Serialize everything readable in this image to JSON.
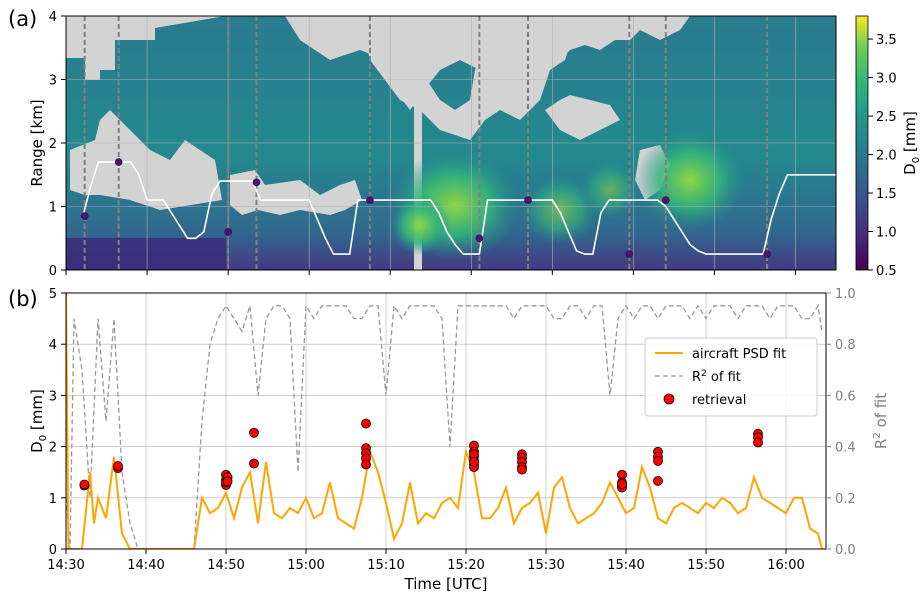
{
  "chart_data": [
    {
      "type": "heatmap",
      "panel_label": "(a)",
      "ylabel": "Range [km]",
      "xlim": [
        0,
        95
      ],
      "ylim": [
        0,
        4
      ],
      "y_ticks": [
        "0",
        "1",
        "2",
        "3",
        "4"
      ],
      "colorbar": {
        "label": "D0 [mm]",
        "range": [
          0.5,
          3.8
        ],
        "ticks": [
          "0.5",
          "1.0",
          "1.5",
          "2.0",
          "2.5",
          "3.0",
          "3.5"
        ],
        "colormap": "viridis"
      },
      "no_data_color": "#d3d3d3",
      "overlay_flight_track": {
        "color": "#ffffff",
        "x_minutes": [
          2,
          3,
          4,
          5,
          6,
          7,
          8,
          9,
          10,
          11,
          12,
          13,
          14,
          15,
          16,
          17,
          18,
          19,
          20,
          21,
          22,
          23,
          24,
          25,
          26,
          27,
          28,
          29,
          30,
          31,
          32,
          33,
          34,
          35,
          36,
          37,
          38,
          39,
          40,
          41,
          42,
          43,
          44,
          45,
          46,
          47,
          48,
          49,
          50,
          51,
          52,
          53,
          54,
          55,
          56,
          57,
          58,
          59,
          60,
          61,
          62,
          63,
          64,
          65,
          66,
          67,
          68,
          69,
          70,
          71,
          72,
          73,
          74,
          75,
          76,
          77,
          78,
          79,
          80,
          81,
          82,
          83,
          84,
          85,
          86,
          87,
          88,
          89,
          90,
          91,
          92,
          93,
          94,
          95
        ],
        "y_km": [
          0.8,
          1.3,
          1.7,
          1.7,
          1.7,
          1.7,
          1.7,
          1.5,
          1.1,
          1.1,
          1.1,
          0.9,
          0.7,
          0.5,
          0.5,
          0.6,
          1.2,
          1.4,
          1.4,
          1.4,
          1.4,
          1.4,
          1.1,
          1.1,
          1.1,
          1.1,
          1.1,
          1.1,
          1.1,
          0.8,
          0.5,
          0.25,
          0.25,
          0.25,
          1.1,
          1.1,
          1.1,
          1.1,
          1.1,
          1.1,
          1.1,
          1.1,
          1.1,
          1.1,
          0.9,
          0.6,
          0.4,
          0.25,
          0.25,
          0.25,
          1.1,
          1.1,
          1.1,
          1.1,
          1.1,
          1.1,
          1.1,
          1.1,
          1.1,
          0.9,
          0.6,
          0.3,
          0.25,
          0.25,
          0.9,
          1.1,
          1.1,
          1.1,
          1.1,
          1.1,
          1.1,
          1.1,
          1.0,
          0.8,
          0.6,
          0.4,
          0.3,
          0.25,
          0.25,
          0.25,
          0.25,
          0.25,
          0.25,
          0.25,
          0.25,
          0.8,
          1.2,
          1.5,
          1.5,
          1.5,
          1.5,
          1.5,
          1.5,
          1.5
        ]
      },
      "retrieval_markers_km": [
        {
          "x": 2.3,
          "y": 0.85
        },
        {
          "x": 6.5,
          "y": 1.7
        },
        {
          "x": 20.0,
          "y": 0.6
        },
        {
          "x": 23.5,
          "y": 1.38
        },
        {
          "x": 37.5,
          "y": 1.1
        },
        {
          "x": 51.0,
          "y": 0.5
        },
        {
          "x": 57.0,
          "y": 1.1
        },
        {
          "x": 69.5,
          "y": 0.25
        },
        {
          "x": 74.0,
          "y": 1.1
        },
        {
          "x": 86.5,
          "y": 0.25
        }
      ],
      "dashed_verticals_minutes": [
        2.3,
        6.5,
        20.0,
        23.5,
        37.5,
        51.0,
        57.0,
        69.5,
        74.0,
        86.5
      ]
    },
    {
      "type": "line",
      "panel_label": "(b)",
      "xlabel": "Time [UTC]",
      "ylabel": "D0 [mm]",
      "ylabel_right": "R2 of fit",
      "x_ticks": [
        "14:30",
        "14:40",
        "14:50",
        "15:00",
        "15:10",
        "15:20",
        "15:30",
        "15:40",
        "15:50",
        "16:00"
      ],
      "x_tick_minutes": [
        0,
        10,
        20,
        30,
        40,
        50,
        60,
        70,
        80,
        90
      ],
      "xlim": [
        0,
        95
      ],
      "ylim": [
        0,
        5
      ],
      "y_ticks": [
        "0",
        "1",
        "2",
        "3",
        "4",
        "5"
      ],
      "ylim_right": [
        0.0,
        1.0
      ],
      "y_ticks_right": [
        "0.0",
        "0.2",
        "0.4",
        "0.6",
        "0.8",
        "1.0"
      ],
      "grid": true,
      "legend_position": "right",
      "series": [
        {
          "name": "aircraft PSD fit",
          "style": "solid",
          "color": "#ffa500",
          "x": [
            0,
            0.3,
            0.5,
            1,
            2,
            3,
            3.5,
            4,
            5,
            6,
            7,
            8,
            9,
            10,
            11,
            12,
            13,
            14,
            15,
            16,
            17,
            18,
            19,
            20,
            21,
            22,
            23,
            24,
            25,
            26,
            27,
            28,
            29,
            30,
            31,
            32,
            33,
            34,
            35,
            36,
            37,
            38,
            39,
            40,
            41,
            42,
            43,
            44,
            45,
            46,
            47,
            48,
            49,
            50,
            51,
            52,
            53,
            54,
            55,
            56,
            57,
            58,
            59,
            60,
            61,
            62,
            63,
            64,
            65,
            66,
            67,
            68,
            69,
            70,
            71,
            72,
            73,
            74,
            75,
            76,
            77,
            78,
            79,
            80,
            81,
            82,
            83,
            84,
            85,
            86,
            87,
            88,
            89,
            90,
            91,
            92,
            93,
            94,
            94.5
          ],
          "values": [
            5.0,
            0.0,
            0.0,
            0.0,
            0.0,
            1.5,
            0.5,
            1.0,
            0.6,
            1.8,
            0.3,
            0.0,
            0.0,
            0.0,
            0.0,
            0.0,
            0.0,
            0.0,
            0.0,
            0.0,
            1.0,
            0.7,
            0.8,
            1.1,
            0.6,
            1.2,
            1.5,
            0.5,
            1.7,
            0.7,
            0.6,
            0.8,
            0.7,
            1.0,
            0.6,
            0.7,
            1.3,
            0.6,
            0.5,
            0.4,
            1.0,
            1.9,
            1.5,
            0.9,
            0.2,
            0.5,
            1.3,
            0.5,
            0.7,
            0.6,
            0.9,
            1.0,
            0.8,
            1.9,
            1.5,
            0.6,
            0.6,
            0.8,
            1.2,
            0.5,
            0.8,
            0.9,
            1.1,
            0.3,
            1.2,
            1.4,
            0.8,
            0.5,
            0.6,
            0.7,
            0.9,
            1.3,
            1.0,
            0.7,
            0.8,
            1.6,
            1.2,
            0.6,
            0.5,
            0.8,
            0.9,
            0.8,
            0.7,
            0.9,
            0.8,
            1.0,
            0.9,
            0.7,
            0.8,
            1.4,
            1.0,
            0.9,
            0.8,
            0.7,
            1.0,
            1.0,
            0.4,
            0.3,
            0.0
          ]
        },
        {
          "name": "R2 of fit",
          "style": "dashed",
          "color": "#999999",
          "axis": "right",
          "x": [
            0,
            0.5,
            1,
            2,
            3,
            4,
            5,
            6,
            7,
            8,
            9,
            10,
            11,
            12,
            13,
            14,
            15,
            16,
            17,
            18,
            19,
            20,
            21,
            22,
            23,
            24,
            25,
            26,
            27,
            28,
            29,
            30,
            31,
            32,
            33,
            34,
            35,
            36,
            37,
            38,
            39,
            40,
            41,
            42,
            43,
            44,
            45,
            46,
            47,
            48,
            49,
            50,
            51,
            52,
            53,
            54,
            55,
            56,
            57,
            58,
            59,
            60,
            61,
            62,
            63,
            64,
            65,
            66,
            67,
            68,
            69,
            70,
            71,
            72,
            73,
            74,
            75,
            76,
            77,
            78,
            79,
            80,
            81,
            82,
            83,
            84,
            85,
            86,
            87,
            88,
            89,
            90,
            91,
            92,
            93,
            94,
            94.5
          ],
          "values": [
            0.2,
            0.0,
            0.9,
            0.7,
            0.2,
            0.9,
            0.5,
            0.9,
            0.3,
            0.1,
            0.0,
            0.0,
            0.0,
            0.0,
            0.0,
            0.0,
            0.0,
            0.0,
            0.5,
            0.8,
            0.9,
            0.95,
            0.9,
            0.85,
            0.95,
            0.6,
            0.9,
            0.95,
            0.95,
            0.9,
            0.3,
            0.95,
            0.9,
            0.95,
            0.95,
            0.95,
            0.95,
            0.9,
            0.9,
            0.95,
            0.95,
            0.6,
            0.95,
            0.9,
            0.95,
            0.95,
            0.95,
            0.95,
            0.9,
            0.4,
            0.95,
            0.95,
            0.95,
            0.95,
            0.95,
            0.95,
            0.95,
            0.9,
            0.95,
            0.95,
            0.95,
            0.95,
            0.9,
            0.9,
            0.95,
            0.95,
            0.9,
            0.95,
            0.95,
            0.6,
            0.9,
            0.95,
            0.9,
            0.95,
            0.95,
            0.9,
            0.95,
            0.95,
            0.95,
            0.9,
            0.95,
            0.9,
            0.95,
            0.95,
            0.95,
            0.9,
            0.95,
            0.95,
            0.95,
            0.9,
            0.95,
            0.95,
            0.95,
            0.9,
            0.9,
            0.95,
            0.85
          ]
        },
        {
          "name": "retrieval",
          "style": "markers",
          "color": "#ff0000",
          "x": [
            2.3,
            2.3,
            6.5,
            6.5,
            20.0,
            20.0,
            20.0,
            20.0,
            20.2,
            20.2,
            23.5,
            23.5,
            37.5,
            37.5,
            37.5,
            37.5,
            37.5,
            51.0,
            51.0,
            51.0,
            51.0,
            51.0,
            51.0,
            51.0,
            51.0,
            57.0,
            57.0,
            57.0,
            57.0,
            57.0,
            69.5,
            69.5,
            69.5,
            69.5,
            69.5,
            74.0,
            74.0,
            74.0,
            74.0,
            86.5,
            86.5,
            86.5
          ],
          "values": [
            1.24,
            1.26,
            1.58,
            1.62,
            1.45,
            1.35,
            1.25,
            1.3,
            1.4,
            1.32,
            2.27,
            1.67,
            2.45,
            1.97,
            1.87,
            1.77,
            1.65,
            2.02,
            1.9,
            1.8,
            1.72,
            1.65,
            1.6,
            1.85,
            1.7,
            1.85,
            1.78,
            1.7,
            1.6,
            1.55,
            1.45,
            1.3,
            1.25,
            1.2,
            1.27,
            1.9,
            1.8,
            1.72,
            1.33,
            2.25,
            2.18,
            2.08
          ]
        }
      ]
    }
  ]
}
